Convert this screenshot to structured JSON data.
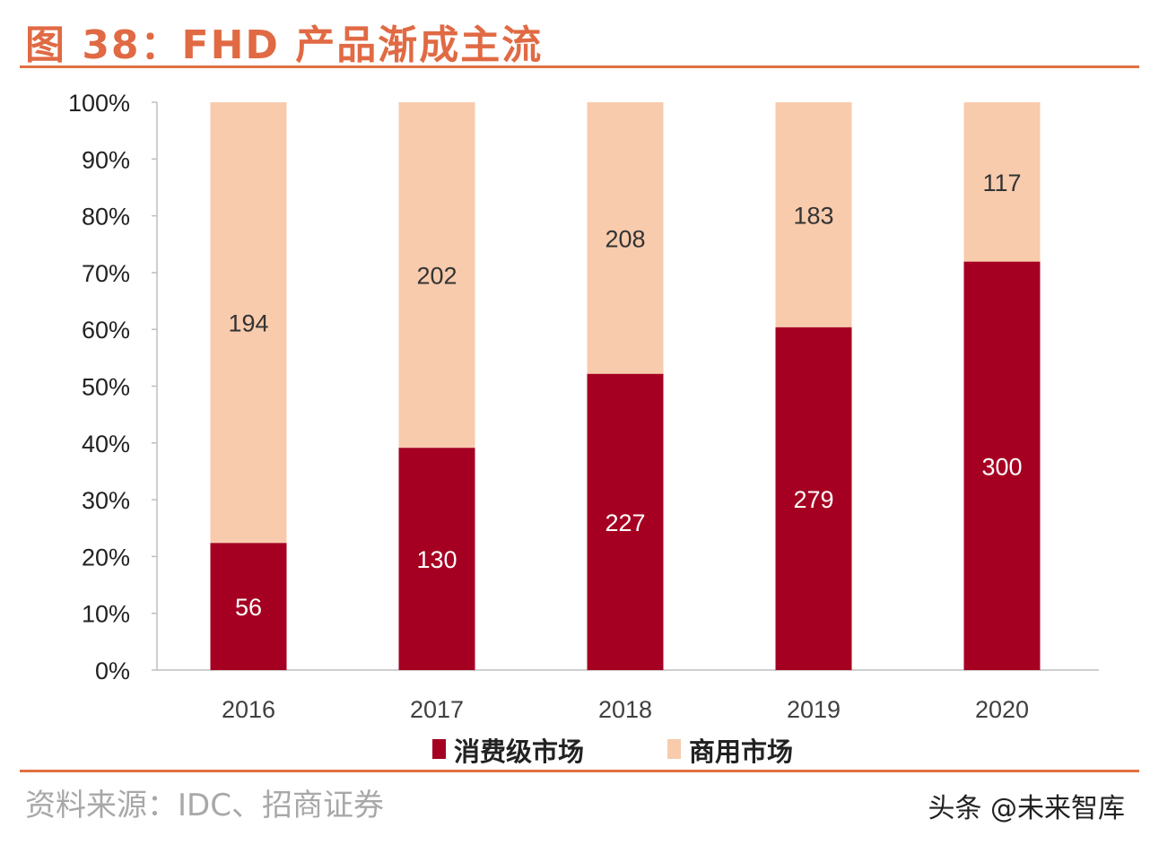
{
  "title": "图 38：FHD 产品渐成主流",
  "source": "资料来源：IDC、招商证券",
  "watermark": "头条 @未来智库",
  "chart_data": {
    "type": "bar",
    "stacked": "percent",
    "categories": [
      "2016",
      "2017",
      "2018",
      "2019",
      "2020"
    ],
    "series": [
      {
        "name": "消费级市场",
        "values": [
          56,
          130,
          227,
          279,
          300
        ],
        "color": "#A50021",
        "label_color": "#FFFFFF"
      },
      {
        "name": "商用市场",
        "values": [
          194,
          202,
          208,
          183,
          117
        ],
        "color": "#F8CBAD",
        "label_color": "#333333"
      }
    ],
    "ylim": [
      0,
      100
    ],
    "yticks": [
      "0%",
      "10%",
      "20%",
      "30%",
      "40%",
      "50%",
      "60%",
      "70%",
      "80%",
      "90%",
      "100%"
    ],
    "grid": false,
    "legend": "bottom",
    "title_color": "#E06A44"
  }
}
